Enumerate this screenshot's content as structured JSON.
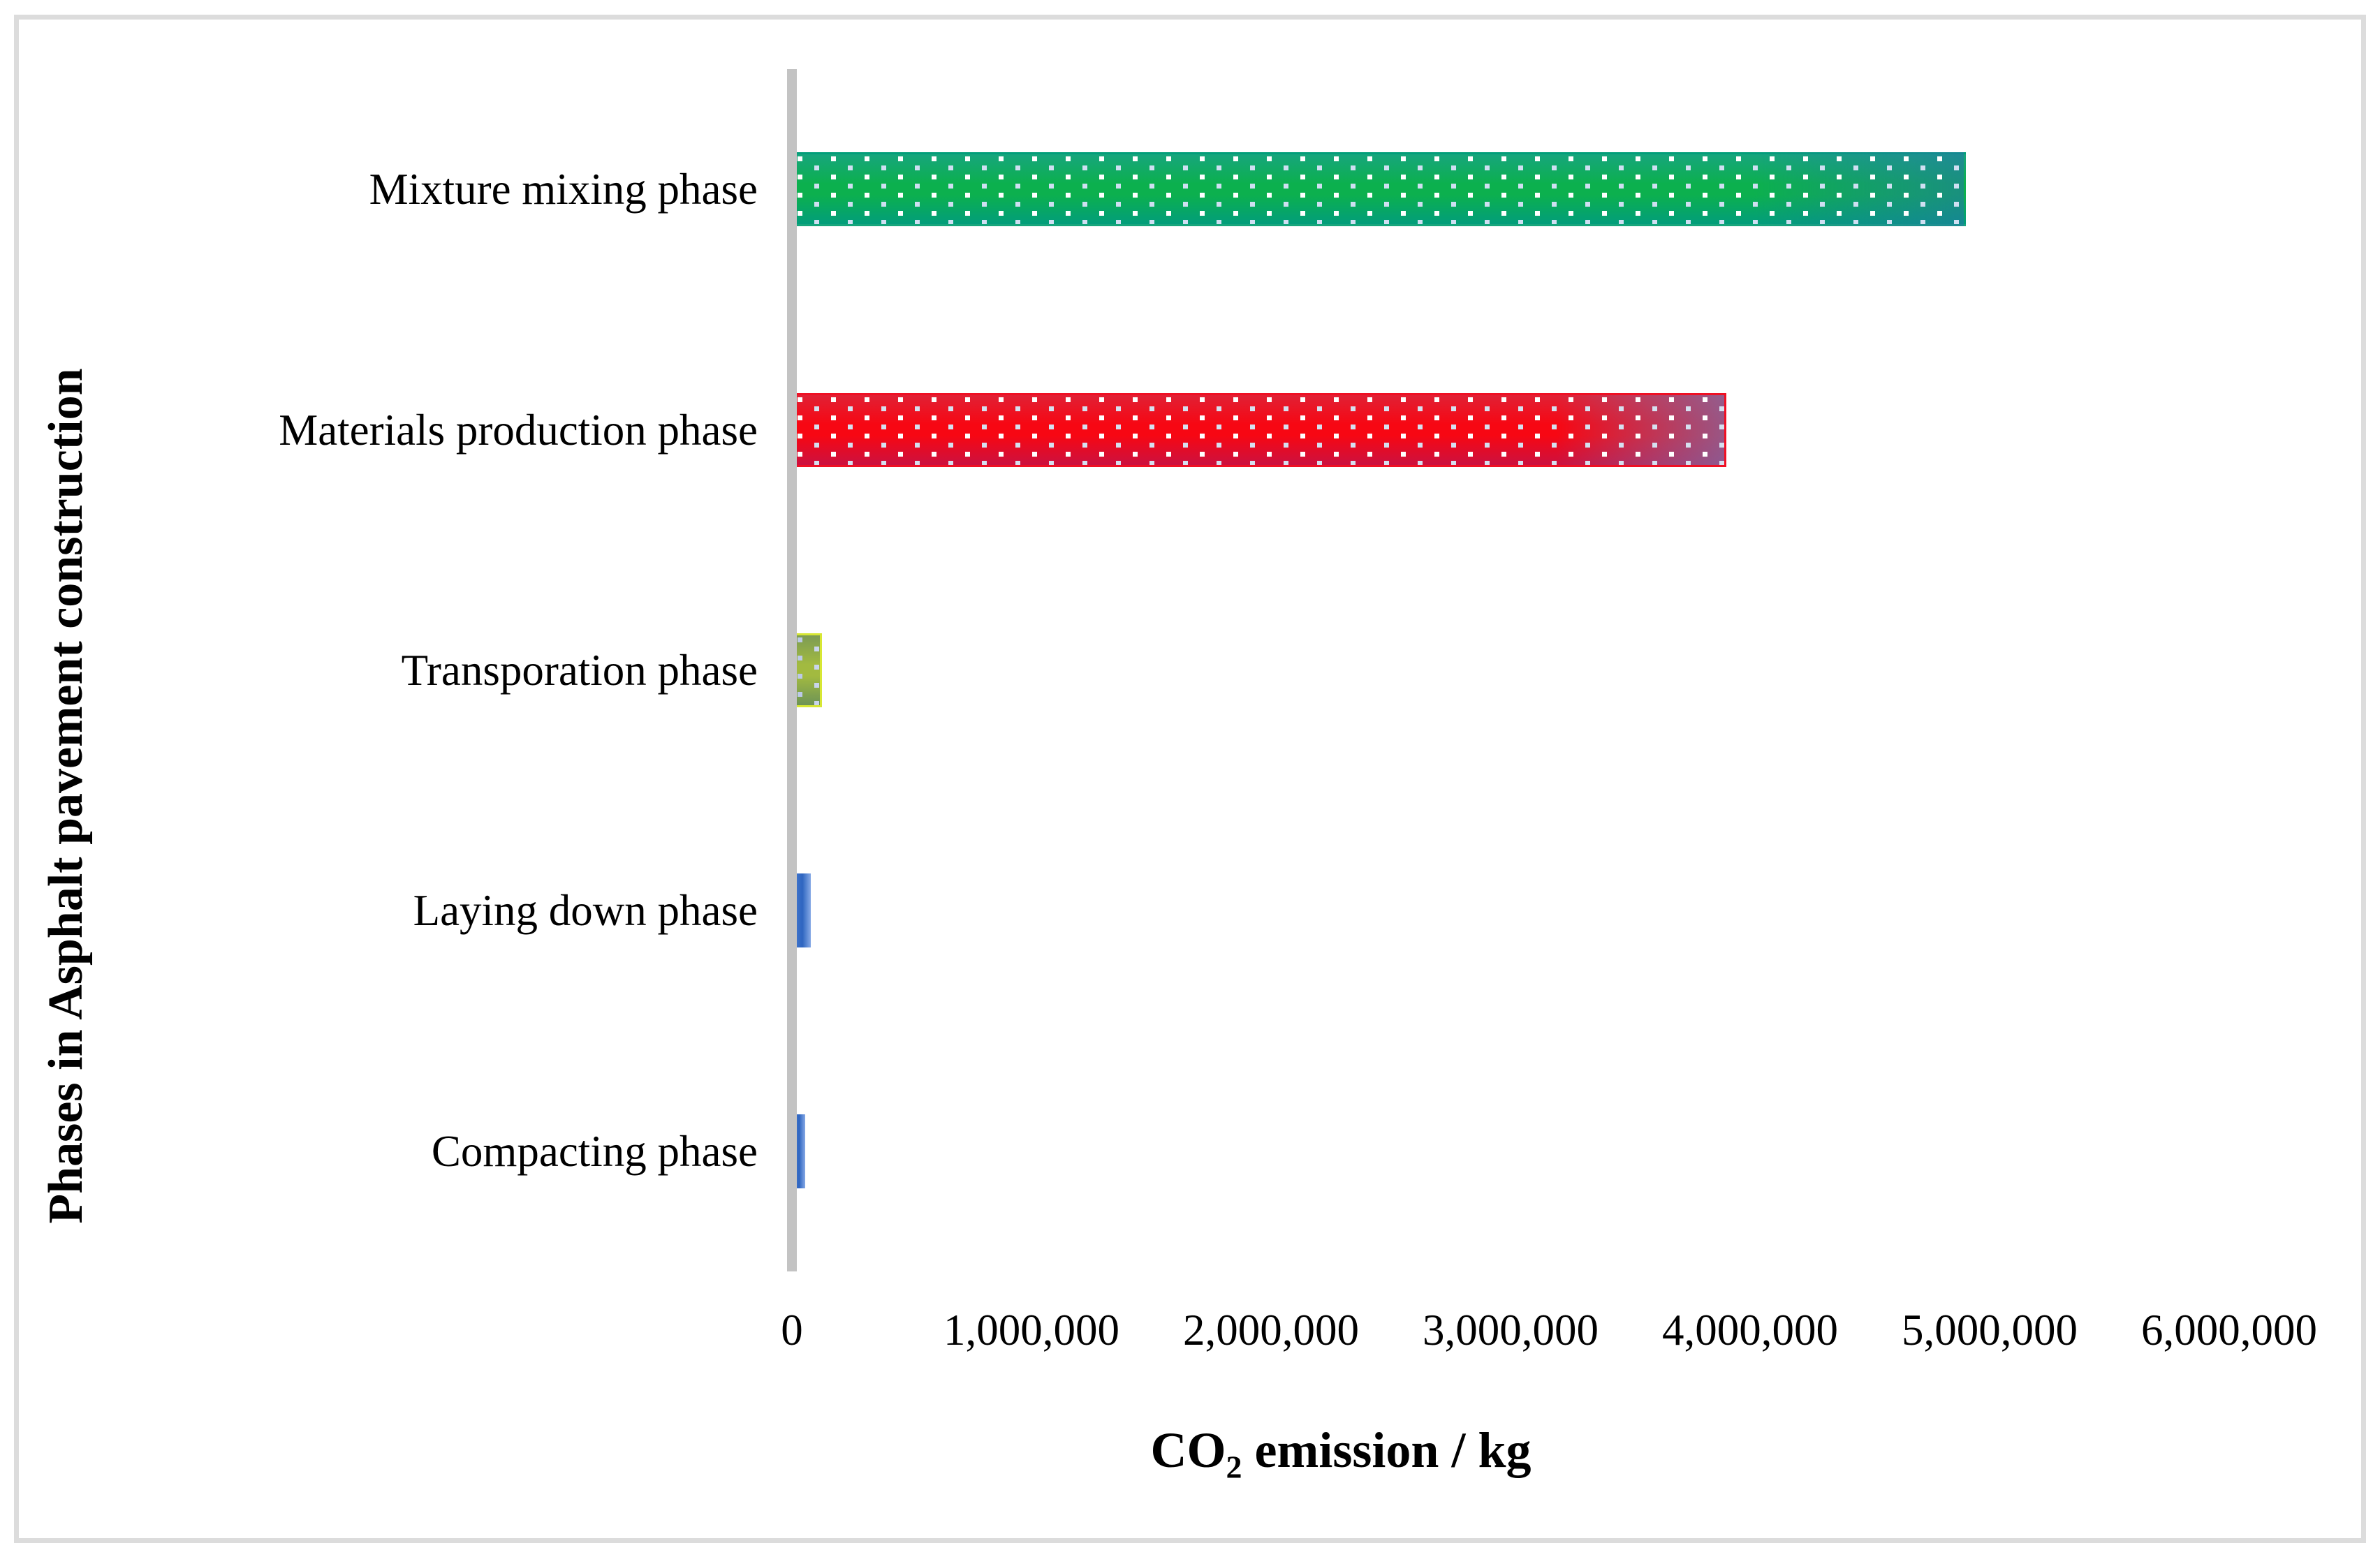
{
  "figure": {
    "background": "#ffffff",
    "border_color": "#dcdcdc",
    "axis_line_color": "#c3c3c3"
  },
  "chart_data": {
    "type": "bar",
    "orientation": "horizontal",
    "title": "",
    "xlabel_parts": {
      "base": "CO",
      "sub": "2",
      "rest": " emission / kg"
    },
    "ylabel": "Phases in Asphalt pavement construction",
    "categories": [
      "Mixture mixing phase",
      "Materials production phase",
      "Transporation phase",
      "Laying down phase",
      "Compacting phase"
    ],
    "values": [
      4900000,
      3900000,
      125000,
      80000,
      55000
    ],
    "xlim": [
      0,
      6000000
    ],
    "xticks": [
      0,
      1000000,
      2000000,
      3000000,
      4000000,
      5000000,
      6000000
    ],
    "xtick_labels": [
      "0",
      "1,000,000",
      "2,000,000",
      "3,000,000",
      "4,000,000",
      "5,000,000",
      "6,000,000"
    ],
    "grid": false,
    "legend": null,
    "bars": [
      {
        "name": "mixture-mixing",
        "fill": "dotted-v",
        "top": "#17a57d",
        "mid": "#0cb04e",
        "bottom": "#029d7b",
        "end_overlay": "rgba(36,118,166,0.55)",
        "border": "rgba(0,0,0,0)",
        "dotA": "#ffffff",
        "dotB": "#cfdff2"
      },
      {
        "name": "materials-production",
        "fill": "dotted-v",
        "top": "#e02135",
        "mid": "#f70713",
        "bottom": "#cb1140",
        "end_overlay": "rgba(122,112,170,0.75)",
        "border": "#ef1024",
        "dotA": "#ffffff",
        "dotB": "#d5e0f0"
      },
      {
        "name": "transportation",
        "fill": "dotted-v",
        "top": "#7c9b54",
        "mid": "#a2ba40",
        "bottom": "#6d9356",
        "end_overlay": "rgba(0,0,0,0)",
        "border": "#d7e734",
        "dotA": "#bcc9e8",
        "dotB": "#c9d5ec"
      },
      {
        "name": "laying-down",
        "fill": "plain-h",
        "left": "#4d7fd2",
        "mid": "#2e65c0",
        "right": "#86a9e6"
      },
      {
        "name": "compacting",
        "fill": "plain-h",
        "left": "#4d7fd2",
        "mid": "#2e65c0",
        "right": "#86a9e6"
      }
    ]
  }
}
